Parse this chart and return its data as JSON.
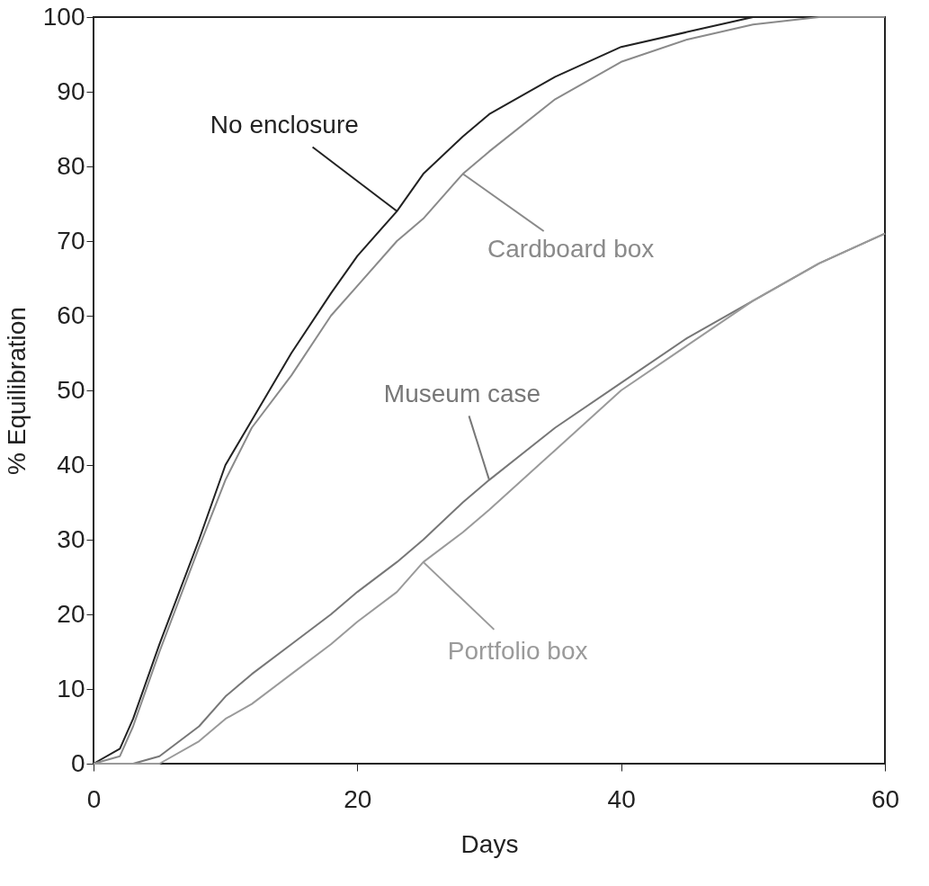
{
  "chart_data": {
    "type": "line",
    "xlabel": "Days",
    "ylabel": "% Equilibration",
    "xlim": [
      0,
      60
    ],
    "xticks": [
      0,
      20,
      40,
      60
    ],
    "ylim": [
      0,
      100
    ],
    "yticks": [
      0,
      10,
      20,
      30,
      40,
      50,
      60,
      70,
      80,
      90,
      100
    ],
    "grid": false,
    "marker": "none",
    "line_style": "solid",
    "x": [
      0,
      2,
      3,
      5,
      8,
      10,
      12,
      15,
      18,
      20,
      23,
      25,
      28,
      30,
      35,
      40,
      45,
      50,
      55,
      60
    ],
    "series": [
      {
        "name": "No enclosure",
        "color": "#222222",
        "values": [
          0,
          2,
          6,
          16,
          30,
          40,
          46,
          55,
          63,
          68,
          74,
          79,
          84,
          87,
          92,
          96,
          98,
          100,
          100,
          100
        ]
      },
      {
        "name": "Cardboard box",
        "color": "#8a8a8a",
        "values": [
          0,
          1,
          5,
          15,
          29,
          38,
          45,
          52,
          60,
          64,
          70,
          73,
          79,
          82,
          89,
          94,
          97,
          99,
          100,
          100
        ]
      },
      {
        "name": "Museum case",
        "color": "#777777",
        "values": [
          0,
          0,
          0,
          1,
          5,
          9,
          12,
          16,
          20,
          23,
          27,
          30,
          35,
          38,
          45,
          51,
          57,
          62,
          67,
          71
        ]
      },
      {
        "name": "Portfolio box",
        "color": "#9a9a9a",
        "values": [
          0,
          0,
          0,
          0,
          3,
          6,
          8,
          12,
          16,
          19,
          23,
          27,
          31,
          34,
          42,
          50,
          56,
          62,
          67,
          71
        ]
      }
    ]
  }
}
